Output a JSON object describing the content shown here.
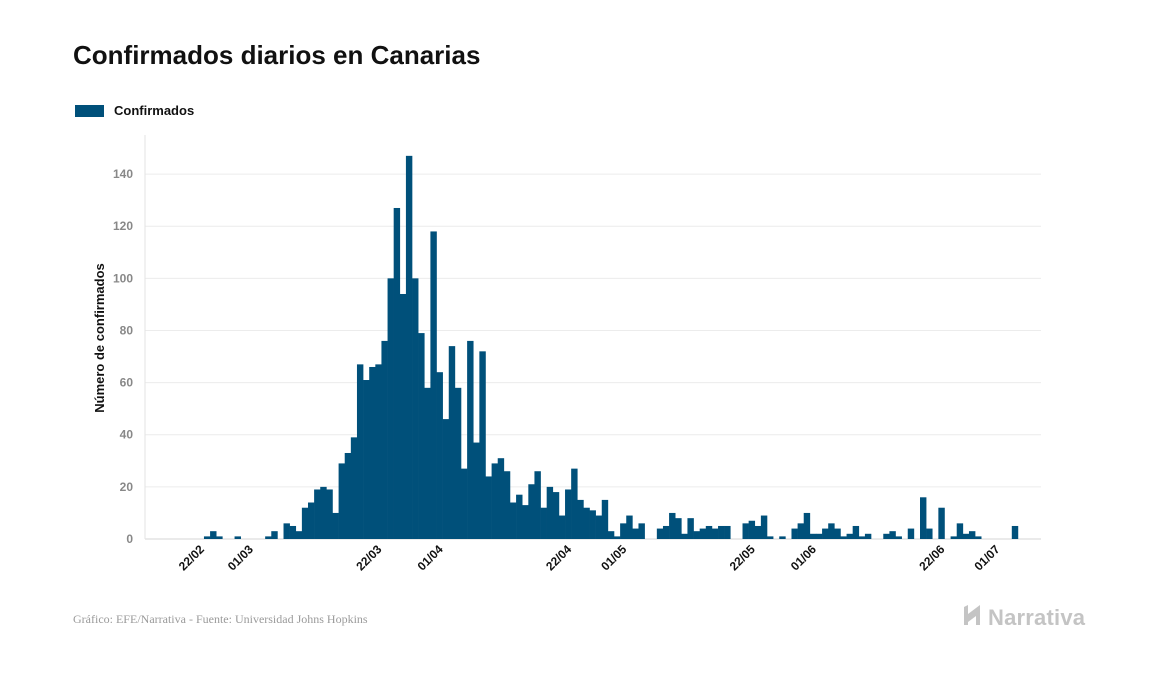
{
  "title": "Confirmados diarios en Canarias",
  "legend": {
    "label": "Confirmados",
    "color": "#00507a"
  },
  "footer": {
    "source": "Gráfico: EFE/Narrativa - Fuente: Universidad Johns Hopkins"
  },
  "brand": {
    "name": "Narrativa",
    "icon": "narrativa-logo-icon"
  },
  "chart_data": {
    "type": "bar",
    "title": "Confirmados diarios en Canarias",
    "xlabel": "",
    "ylabel": "Número de confirmados",
    "ylim": [
      0,
      155
    ],
    "yticks": [
      0,
      20,
      40,
      60,
      80,
      100,
      120,
      140
    ],
    "grid": true,
    "legend_position": "top-left",
    "bar_color": "#00507a",
    "start_date": "2020-02-15",
    "xtick_labels": [
      {
        "label": "22/02",
        "date": "2020-02-22"
      },
      {
        "label": "01/03",
        "date": "2020-03-01"
      },
      {
        "label": "22/03",
        "date": "2020-03-22"
      },
      {
        "label": "01/04",
        "date": "2020-04-01"
      },
      {
        "label": "22/04",
        "date": "2020-04-22"
      },
      {
        "label": "01/05",
        "date": "2020-05-01"
      },
      {
        "label": "22/05",
        "date": "2020-05-22"
      },
      {
        "label": "01/06",
        "date": "2020-06-01"
      },
      {
        "label": "22/06",
        "date": "2020-06-22"
      },
      {
        "label": "01/07",
        "date": "2020-07-01"
      }
    ],
    "series": [
      {
        "name": "Confirmados",
        "values": [
          0,
          0,
          0,
          0,
          0,
          0,
          0,
          0,
          1,
          3,
          1,
          0,
          0,
          1,
          0,
          0,
          0,
          0,
          1,
          3,
          0,
          6,
          5,
          3,
          12,
          14,
          19,
          20,
          19,
          10,
          29,
          33,
          39,
          67,
          61,
          66,
          67,
          76,
          100,
          127,
          94,
          147,
          100,
          79,
          58,
          118,
          64,
          46,
          74,
          58,
          27,
          76,
          37,
          72,
          24,
          29,
          31,
          26,
          14,
          17,
          13,
          21,
          26,
          12,
          20,
          18,
          9,
          19,
          27,
          15,
          12,
          11,
          9,
          15,
          3,
          1,
          6,
          9,
          4,
          6,
          0,
          0,
          4,
          5,
          10,
          8,
          2,
          8,
          3,
          4,
          5,
          4,
          5,
          5,
          0,
          0,
          6,
          7,
          5,
          9,
          1,
          0,
          1,
          0,
          4,
          6,
          10,
          2,
          2,
          4,
          6,
          4,
          1,
          2,
          5,
          1,
          2,
          0,
          0,
          2,
          3,
          1,
          0,
          4,
          0,
          16,
          4,
          0,
          12,
          0,
          1,
          6,
          2,
          3,
          1,
          0,
          0,
          0,
          0,
          0,
          5,
          0
        ]
      }
    ]
  }
}
